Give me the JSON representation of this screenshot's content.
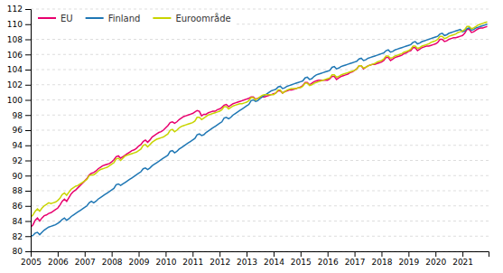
{
  "chart_data": {
    "type": "line",
    "x": [
      2005.0,
      2005.0833333333333,
      2005.1666666666667,
      2005.25,
      2005.3333333333333,
      2005.4166666666667,
      2005.5,
      2005.5833333333333,
      2005.6666666666667,
      2005.75,
      2005.8333333333333,
      2005.9166666666667,
      2006.0,
      2006.0833333333333,
      2006.1666666666667,
      2006.25,
      2006.3333333333333,
      2006.4166666666667,
      2006.5,
      2006.5833333333333,
      2006.6666666666667,
      2006.75,
      2006.8333333333333,
      2006.9166666666667,
      2007.0,
      2007.0833333333333,
      2007.1666666666667,
      2007.25,
      2007.3333333333333,
      2007.4166666666667,
      2007.5,
      2007.5833333333333,
      2007.6666666666667,
      2007.75,
      2007.8333333333333,
      2007.9166666666667,
      2008.0,
      2008.0833333333333,
      2008.1666666666667,
      2008.25,
      2008.3333333333333,
      2008.4166666666667,
      2008.5,
      2008.5833333333333,
      2008.6666666666667,
      2008.75,
      2008.8333333333333,
      2008.9166666666667,
      2009.0,
      2009.0833333333333,
      2009.1666666666667,
      2009.25,
      2009.3333333333333,
      2009.4166666666667,
      2009.5,
      2009.5833333333333,
      2009.6666666666667,
      2009.75,
      2009.8333333333333,
      2009.9166666666667,
      2010.0,
      2010.0833333333333,
      2010.1666666666667,
      2010.25,
      2010.3333333333333,
      2010.4166666666667,
      2010.5,
      2010.5833333333333,
      2010.6666666666667,
      2010.75,
      2010.8333333333333,
      2010.9166666666667,
      2011.0,
      2011.0833333333333,
      2011.1666666666667,
      2011.25,
      2011.3333333333333,
      2011.4166666666667,
      2011.5,
      2011.5833333333333,
      2011.6666666666667,
      2011.75,
      2011.8333333333333,
      2011.9166666666667,
      2012.0,
      2012.0833333333333,
      2012.1666666666667,
      2012.25,
      2012.3333333333333,
      2012.4166666666667,
      2012.5,
      2012.5833333333333,
      2012.6666666666667,
      2012.75,
      2012.8333333333333,
      2012.9166666666667,
      2013.0,
      2013.0833333333333,
      2013.1666666666667,
      2013.25,
      2013.3333333333333,
      2013.4166666666667,
      2013.5,
      2013.5833333333333,
      2013.6666666666667,
      2013.75,
      2013.8333333333333,
      2013.9166666666667,
      2014.0,
      2014.0833333333333,
      2014.1666666666667,
      2014.25,
      2014.3333333333333,
      2014.4166666666667,
      2014.5,
      2014.5833333333333,
      2014.6666666666667,
      2014.75,
      2014.8333333333333,
      2014.9166666666667,
      2015.0,
      2015.0833333333333,
      2015.1666666666667,
      2015.25,
      2015.3333333333333,
      2015.4166666666667,
      2015.5,
      2015.5833333333333,
      2015.6666666666667,
      2015.75,
      2015.8333333333333,
      2015.9166666666667,
      2016.0,
      2016.0833333333333,
      2016.1666666666667,
      2016.25,
      2016.3333333333333,
      2016.4166666666667,
      2016.5,
      2016.5833333333333,
      2016.6666666666667,
      2016.75,
      2016.8333333333333,
      2016.9166666666667,
      2017.0,
      2017.0833333333333,
      2017.1666666666667,
      2017.25,
      2017.3333333333333,
      2017.4166666666667,
      2017.5,
      2017.5833333333333,
      2017.6666666666667,
      2017.75,
      2017.8333333333333,
      2017.9166666666667,
      2018.0,
      2018.0833333333333,
      2018.1666666666667,
      2018.25,
      2018.3333333333333,
      2018.4166666666667,
      2018.5,
      2018.5833333333333,
      2018.6666666666667,
      2018.75,
      2018.8333333333333,
      2018.9166666666667,
      2019.0,
      2019.0833333333333,
      2019.1666666666667,
      2019.25,
      2019.3333333333333,
      2019.4166666666667,
      2019.5,
      2019.5833333333333,
      2019.6666666666667,
      2019.75,
      2019.8333333333333,
      2019.9166666666667,
      2020.0,
      2020.0833333333333,
      2020.1666666666667,
      2020.25,
      2020.3333333333333,
      2020.4166666666667,
      2020.5,
      2020.5833333333333,
      2020.6666666666667,
      2020.75,
      2020.8333333333333,
      2020.9166666666667,
      2021.0,
      2021.0833333333333,
      2021.1666666666667,
      2021.25,
      2021.3333333333333,
      2021.4166666666667,
      2021.5,
      2021.5833333333333,
      2021.6666666666667,
      2021.75,
      2021.8333333333333,
      2021.9166666666667
    ],
    "series": [
      {
        "name": "EU",
        "color": "#e8006e",
        "values": [
          83.2,
          83.5,
          84.1,
          84.4,
          84.0,
          84.4,
          84.7,
          84.8,
          85.0,
          85.1,
          85.3,
          85.5,
          85.7,
          86.1,
          86.6,
          86.9,
          86.6,
          87.1,
          87.6,
          87.9,
          88.1,
          88.4,
          88.7,
          89.0,
          89.3,
          89.6,
          90.1,
          90.3,
          90.4,
          90.6,
          90.9,
          91.1,
          91.3,
          91.4,
          91.5,
          91.6,
          91.8,
          92.1,
          92.5,
          92.6,
          92.3,
          92.5,
          92.7,
          92.9,
          93.1,
          93.3,
          93.4,
          93.6,
          93.9,
          94.1,
          94.5,
          94.7,
          94.4,
          94.7,
          95.1,
          95.3,
          95.5,
          95.7,
          95.8,
          96.0,
          96.3,
          96.6,
          97.0,
          97.1,
          96.9,
          97.1,
          97.4,
          97.6,
          97.8,
          97.9,
          98.0,
          98.1,
          98.2,
          98.4,
          98.6,
          98.5,
          97.9,
          98.1,
          98.1,
          98.3,
          98.4,
          98.5,
          98.5,
          98.7,
          98.8,
          99.0,
          99.3,
          99.4,
          99.1,
          99.3,
          99.5,
          99.6,
          99.7,
          99.8,
          99.9,
          100.0,
          100.1,
          100.2,
          100.4,
          100.4,
          100.1,
          100.2,
          100.3,
          100.4,
          100.4,
          100.5,
          100.6,
          100.7,
          100.8,
          100.9,
          101.2,
          101.2,
          100.9,
          101.1,
          101.2,
          101.3,
          101.3,
          101.4,
          101.5,
          101.6,
          101.7,
          101.9,
          102.3,
          102.3,
          102.0,
          102.2,
          102.4,
          102.5,
          102.6,
          102.6,
          102.6,
          102.6,
          102.6,
          102.8,
          103.1,
          103.1,
          102.7,
          102.9,
          103.1,
          103.2,
          103.3,
          103.4,
          103.6,
          103.7,
          103.9,
          104.1,
          104.5,
          104.5,
          104.1,
          104.3,
          104.5,
          104.6,
          104.7,
          104.7,
          104.8,
          104.9,
          105.0,
          105.2,
          105.6,
          105.6,
          105.2,
          105.4,
          105.6,
          105.7,
          105.8,
          105.9,
          106.1,
          106.2,
          106.4,
          106.5,
          106.9,
          106.9,
          106.5,
          106.7,
          106.9,
          107.0,
          107.1,
          107.1,
          107.2,
          107.3,
          107.4,
          107.6,
          108.0,
          108.0,
          107.7,
          107.8,
          108.0,
          108.1,
          108.2,
          108.2,
          108.3,
          108.4,
          108.5,
          108.8,
          109.3,
          109.3,
          108.9,
          109.0,
          109.2,
          109.4,
          109.5,
          109.5,
          109.6,
          109.7
        ]
      },
      {
        "name": "Finland",
        "color": "#1f77b4",
        "values": [
          82.0,
          82.1,
          82.4,
          82.5,
          82.2,
          82.5,
          82.8,
          83.0,
          83.2,
          83.3,
          83.4,
          83.5,
          83.7,
          83.9,
          84.2,
          84.4,
          84.1,
          84.3,
          84.6,
          84.8,
          85.0,
          85.2,
          85.4,
          85.6,
          85.8,
          86.0,
          86.4,
          86.6,
          86.4,
          86.6,
          86.9,
          87.1,
          87.3,
          87.5,
          87.7,
          87.9,
          88.1,
          88.3,
          88.8,
          88.9,
          88.7,
          88.9,
          89.1,
          89.3,
          89.5,
          89.7,
          89.9,
          90.1,
          90.3,
          90.5,
          90.9,
          91.0,
          90.8,
          91.0,
          91.3,
          91.5,
          91.7,
          91.9,
          92.1,
          92.3,
          92.5,
          92.7,
          93.2,
          93.3,
          93.0,
          93.2,
          93.5,
          93.7,
          93.9,
          94.1,
          94.3,
          94.5,
          94.7,
          94.9,
          95.4,
          95.5,
          95.3,
          95.4,
          95.7,
          95.9,
          96.1,
          96.3,
          96.5,
          96.7,
          96.9,
          97.1,
          97.6,
          97.7,
          97.5,
          97.7,
          98.0,
          98.2,
          98.4,
          98.6,
          98.8,
          99.0,
          99.2,
          99.4,
          99.9,
          100.0,
          99.8,
          99.9,
          100.2,
          100.4,
          100.6,
          100.8,
          101.0,
          101.2,
          101.3,
          101.4,
          101.7,
          101.8,
          101.5,
          101.6,
          101.8,
          101.9,
          102.0,
          102.1,
          102.2,
          102.3,
          102.4,
          102.5,
          102.9,
          103.0,
          102.7,
          102.8,
          103.1,
          103.3,
          103.4,
          103.5,
          103.6,
          103.7,
          103.8,
          103.9,
          104.3,
          104.4,
          104.1,
          104.2,
          104.4,
          104.5,
          104.6,
          104.7,
          104.8,
          104.9,
          105.0,
          105.1,
          105.4,
          105.5,
          105.2,
          105.3,
          105.5,
          105.6,
          105.7,
          105.8,
          105.9,
          106.0,
          106.1,
          106.2,
          106.5,
          106.6,
          106.3,
          106.4,
          106.6,
          106.7,
          106.8,
          106.9,
          107.0,
          107.1,
          107.2,
          107.3,
          107.6,
          107.7,
          107.4,
          107.5,
          107.7,
          107.8,
          107.9,
          108.0,
          108.1,
          108.2,
          108.3,
          108.4,
          108.7,
          108.8,
          108.5,
          108.6,
          108.8,
          108.9,
          109.0,
          109.1,
          109.2,
          109.3,
          109.0,
          109.1,
          109.4,
          109.5,
          109.2,
          109.3,
          109.5,
          109.6,
          109.7,
          109.8,
          109.9,
          110.0
        ]
      },
      {
        "name": "Euroområde",
        "color": "#c8d400",
        "values": [
          84.5,
          84.8,
          85.3,
          85.6,
          85.3,
          85.7,
          86.0,
          86.2,
          86.4,
          86.3,
          86.4,
          86.5,
          86.7,
          87.0,
          87.5,
          87.7,
          87.4,
          87.8,
          88.2,
          88.4,
          88.6,
          88.7,
          88.9,
          89.1,
          89.3,
          89.5,
          90.0,
          90.1,
          90.1,
          90.3,
          90.6,
          90.8,
          90.9,
          91.0,
          91.1,
          91.3,
          91.5,
          91.7,
          92.2,
          92.3,
          92.0,
          92.3,
          92.6,
          92.7,
          92.8,
          92.9,
          93.0,
          93.1,
          93.3,
          93.5,
          94.0,
          94.1,
          93.8,
          94.1,
          94.4,
          94.6,
          94.8,
          94.9,
          95.0,
          95.1,
          95.3,
          95.5,
          96.0,
          96.1,
          95.8,
          96.0,
          96.3,
          96.5,
          96.6,
          96.7,
          96.8,
          96.9,
          97.0,
          97.2,
          97.7,
          97.7,
          97.4,
          97.6,
          97.8,
          98.0,
          98.1,
          98.2,
          98.3,
          98.4,
          98.5,
          98.7,
          99.1,
          99.1,
          98.8,
          99.0,
          99.2,
          99.3,
          99.4,
          99.5,
          99.5,
          99.6,
          99.7,
          99.9,
          100.3,
          100.3,
          100.0,
          100.2,
          100.4,
          100.6,
          100.7,
          100.7,
          100.7,
          100.7,
          100.7,
          100.9,
          101.3,
          101.3,
          100.9,
          101.1,
          101.3,
          101.4,
          101.5,
          101.5,
          101.5,
          101.6,
          101.6,
          101.8,
          102.2,
          102.2,
          101.9,
          102.0,
          102.2,
          102.3,
          102.4,
          102.5,
          102.6,
          102.7,
          102.8,
          102.9,
          103.3,
          103.3,
          103.0,
          103.1,
          103.3,
          103.4,
          103.5,
          103.6,
          103.7,
          103.8,
          103.9,
          104.1,
          104.5,
          104.5,
          104.2,
          104.3,
          104.5,
          104.6,
          104.7,
          104.8,
          105.0,
          105.1,
          105.2,
          105.4,
          105.8,
          105.8,
          105.5,
          105.6,
          105.8,
          105.9,
          106.0,
          106.1,
          106.3,
          106.4,
          106.5,
          106.7,
          107.1,
          107.1,
          106.8,
          106.9,
          107.1,
          107.2,
          107.3,
          107.4,
          107.6,
          107.7,
          107.8,
          108.0,
          108.4,
          108.4,
          108.1,
          108.2,
          108.4,
          108.5,
          108.6,
          108.7,
          108.9,
          109.0,
          109.1,
          109.3,
          109.7,
          109.7,
          109.4,
          109.5,
          109.7,
          109.9,
          110.0,
          110.1,
          110.2,
          110.3
        ]
      }
    ],
    "xlim": [
      2005,
      2021.9666666666667
    ],
    "xticks": [
      2005,
      2006,
      2007,
      2008,
      2009,
      2010,
      2011,
      2012,
      2013,
      2014,
      2015,
      2016,
      2017,
      2018,
      2019,
      2020,
      2021
    ],
    "ylim": [
      80,
      112
    ],
    "yticks": [
      80,
      82,
      84,
      86,
      88,
      90,
      92,
      94,
      96,
      98,
      100,
      102,
      104,
      106,
      108,
      110,
      112
    ],
    "grid": true,
    "legend": "upper left"
  }
}
